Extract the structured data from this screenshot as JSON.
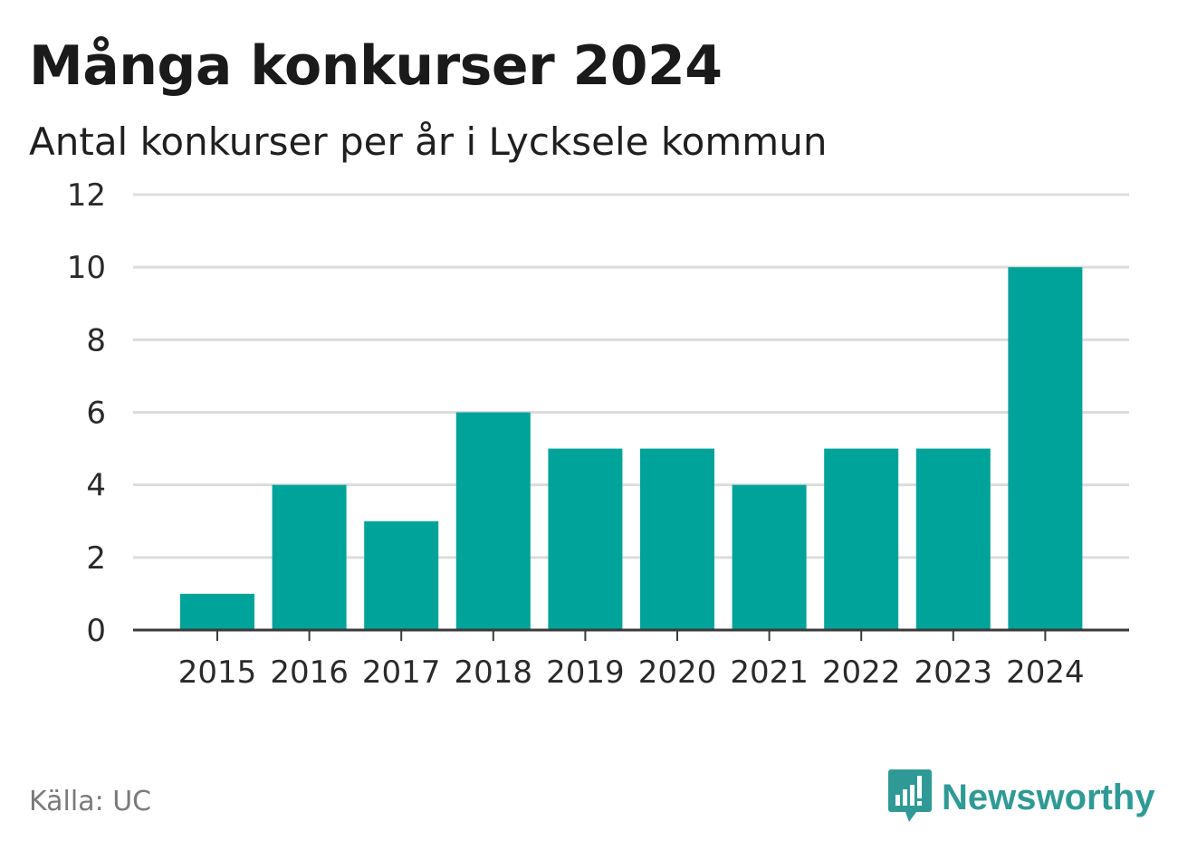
{
  "title": "Många konkurser 2024",
  "subtitle": "Antal konkurser per år i Lycksele kommun",
  "source": "Källa: UC",
  "brand": {
    "name": "Newsworthy",
    "icon": "bar-chart-speech-bubble-icon"
  },
  "colors": {
    "bar": "#00a39a",
    "grid": "#dcdcdc",
    "axis": "#3a3a3a",
    "brand": "#2f9a95"
  },
  "chart_data": {
    "type": "bar",
    "title": "Många konkurser 2024",
    "subtitle": "Antal konkurser per år i Lycksele kommun",
    "categories": [
      "2015",
      "2016",
      "2017",
      "2018",
      "2019",
      "2020",
      "2021",
      "2022",
      "2023",
      "2024"
    ],
    "values": [
      1,
      4,
      3,
      6,
      5,
      5,
      4,
      5,
      5,
      10
    ],
    "yticks": [
      0,
      2,
      4,
      6,
      8,
      10,
      12
    ],
    "ylim": [
      0,
      12
    ],
    "grid": true,
    "xlabel": "",
    "ylabel": ""
  }
}
